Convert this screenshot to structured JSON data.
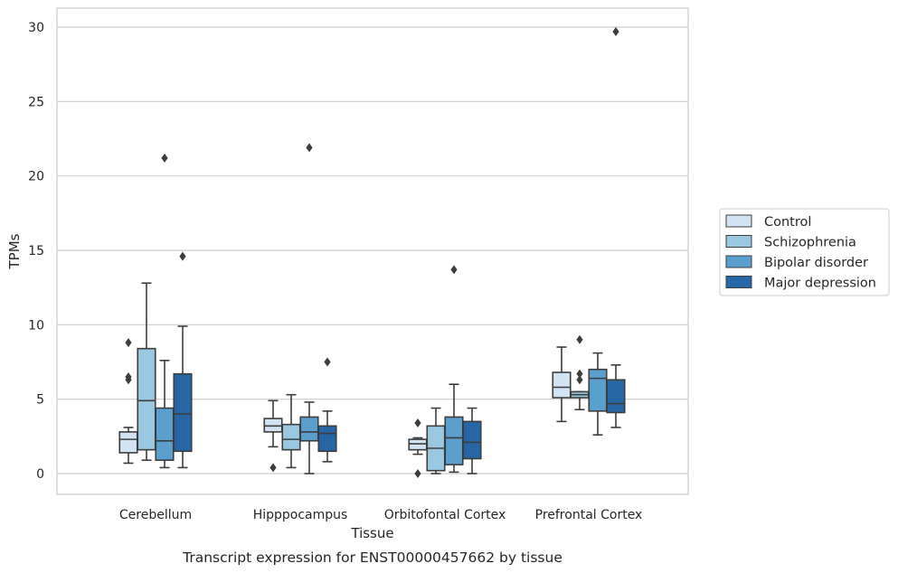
{
  "chart_data": {
    "type": "box",
    "caption": "Transcript expression for ENST00000457662 by tissue",
    "xlabel": "Tissue",
    "ylabel": "TPMs",
    "ylim": [
      -1.4,
      31.3
    ],
    "yticks": [
      0,
      5,
      10,
      15,
      20,
      25,
      30
    ],
    "grid": true,
    "legend_placement": "right",
    "categories": [
      "Cerebellum",
      "Hipppocampus",
      "Orbitofontal Cortex",
      "Prefrontal Cortex"
    ],
    "series": [
      {
        "name": "Control",
        "color": "#d2e3f3",
        "boxes": [
          {
            "min": 0.7,
            "q1": 1.4,
            "median": 2.3,
            "q3": 2.8,
            "max": 3.1,
            "outliers": [
              6.3,
              6.5,
              8.8
            ]
          },
          {
            "min": 1.8,
            "q1": 2.8,
            "median": 3.2,
            "q3": 3.7,
            "max": 4.9,
            "outliers": [
              0.4
            ]
          },
          {
            "min": 1.3,
            "q1": 1.6,
            "median": 2.0,
            "q3": 2.3,
            "max": 2.4,
            "outliers": [
              3.4,
              0.0
            ]
          },
          {
            "min": 3.5,
            "q1": 5.1,
            "median": 5.8,
            "q3": 6.8,
            "max": 8.5,
            "outliers": []
          }
        ]
      },
      {
        "name": "Schizophrenia",
        "color": "#9ac8e0",
        "boxes": [
          {
            "min": 0.9,
            "q1": 1.6,
            "median": 4.9,
            "q3": 8.4,
            "max": 12.8,
            "outliers": []
          },
          {
            "min": 0.4,
            "q1": 1.6,
            "median": 2.3,
            "q3": 3.3,
            "max": 5.3,
            "outliers": []
          },
          {
            "min": 0.0,
            "q1": 0.2,
            "median": 1.7,
            "q3": 3.2,
            "max": 4.4,
            "outliers": []
          },
          {
            "min": 4.3,
            "q1": 5.1,
            "median": 5.3,
            "q3": 5.5,
            "max": 5.5,
            "outliers": [
              6.3,
              6.7,
              9.0
            ]
          }
        ]
      },
      {
        "name": "Bipolar disorder",
        "color": "#5a9fcd",
        "boxes": [
          {
            "min": 0.4,
            "q1": 0.9,
            "median": 2.2,
            "q3": 4.4,
            "max": 7.6,
            "outliers": [
              21.2
            ]
          },
          {
            "min": 0.0,
            "q1": 2.2,
            "median": 2.8,
            "q3": 3.8,
            "max": 4.8,
            "outliers": [
              21.9
            ]
          },
          {
            "min": 0.1,
            "q1": 0.6,
            "median": 2.4,
            "q3": 3.8,
            "max": 6.0,
            "outliers": [
              13.7
            ]
          },
          {
            "min": 2.6,
            "q1": 4.2,
            "median": 6.4,
            "q3": 7.0,
            "max": 8.1,
            "outliers": []
          }
        ]
      },
      {
        "name": "Major depression",
        "color": "#2666a6",
        "boxes": [
          {
            "min": 0.4,
            "q1": 1.5,
            "median": 4.0,
            "q3": 6.7,
            "max": 9.9,
            "outliers": [
              14.6
            ]
          },
          {
            "min": 0.8,
            "q1": 1.5,
            "median": 2.7,
            "q3": 3.2,
            "max": 4.2,
            "outliers": [
              7.5
            ]
          },
          {
            "min": 0.0,
            "q1": 1.0,
            "median": 2.1,
            "q3": 3.5,
            "max": 4.4,
            "outliers": []
          },
          {
            "min": 3.1,
            "q1": 4.1,
            "median": 4.7,
            "q3": 6.3,
            "max": 7.3,
            "outliers": [
              29.7
            ]
          }
        ]
      }
    ]
  }
}
